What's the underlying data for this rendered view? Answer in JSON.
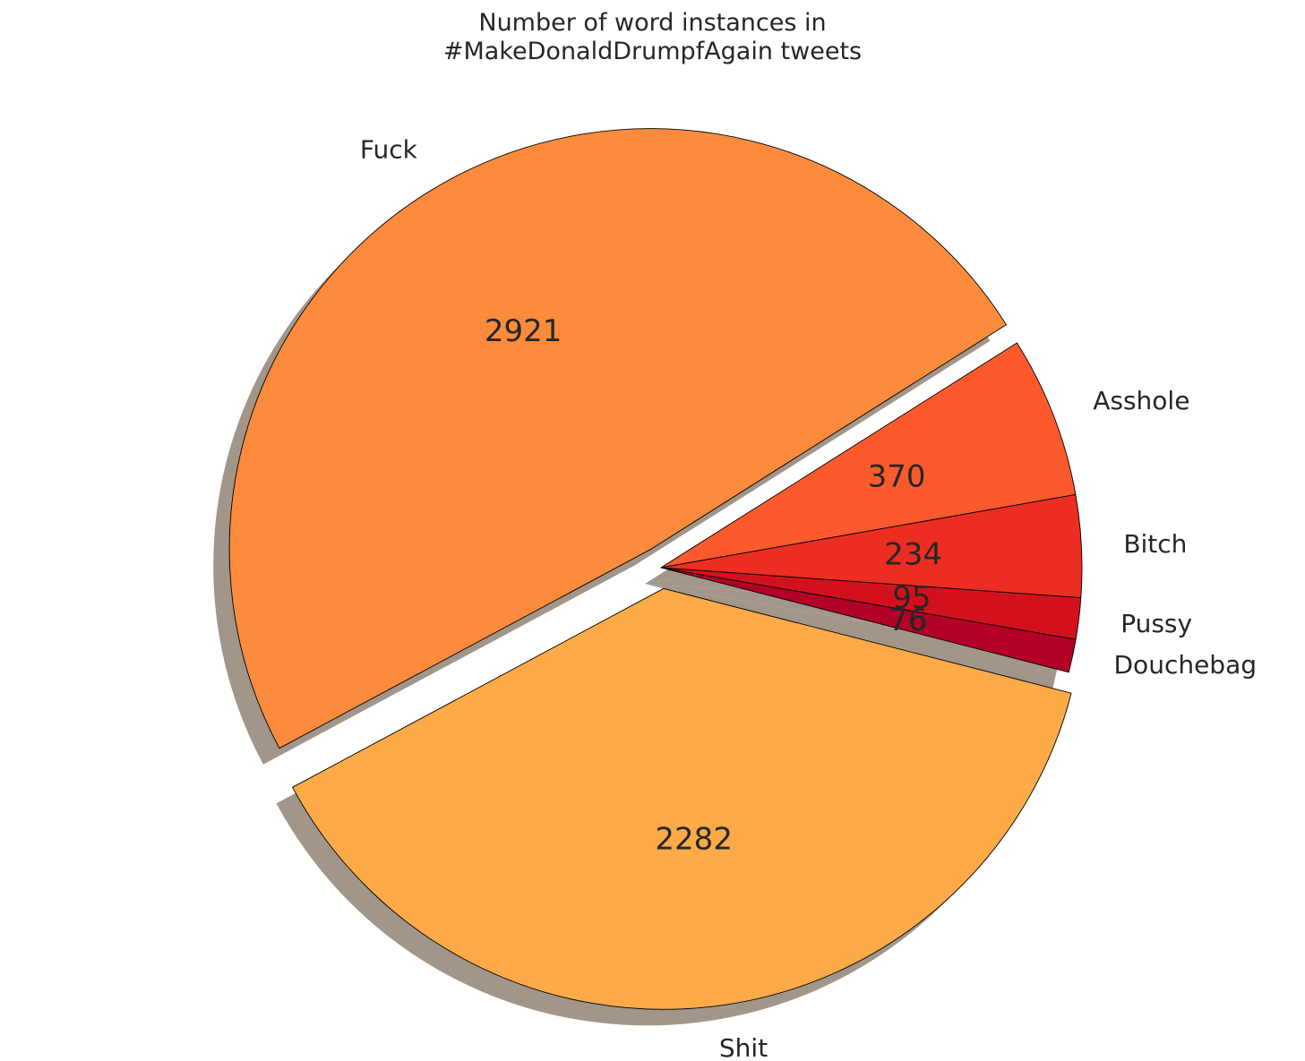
{
  "chart_data": {
    "type": "pie",
    "title_lines": [
      "Number of word instances in",
      "#MakeDonaldDrumpfAgain tweets"
    ],
    "categories": [
      "Asshole",
      "Fuck",
      "Shit",
      "Douchebag",
      "Pussy",
      "Bitch"
    ],
    "values": [
      370,
      2921,
      2282,
      76,
      95,
      234
    ],
    "value_labels": [
      "370",
      "2921",
      "2282",
      "76",
      "95",
      "234"
    ],
    "colors": [
      "#fc5a2d",
      "#fc8b3d",
      "#fdaa48",
      "#b30026",
      "#d3111e",
      "#ec2e22"
    ],
    "exploded": [
      "Fuck",
      "Shit"
    ],
    "shadow": true,
    "edge_color": "#000000",
    "shadow_color": "#a2958a"
  }
}
